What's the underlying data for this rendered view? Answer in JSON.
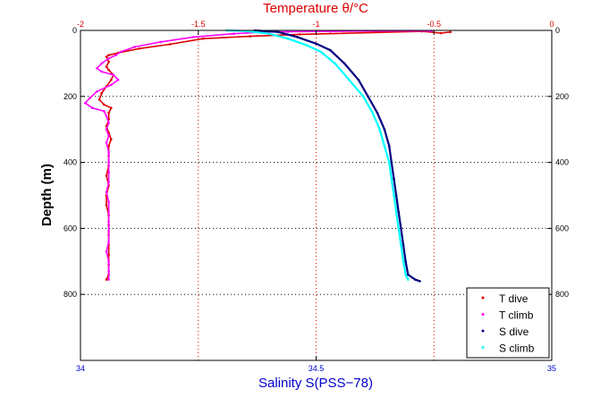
{
  "chart_data": {
    "type": "scatter",
    "title": "Temperature θ/°C",
    "xlabel": "Salinity S(PSS−78)",
    "ylabel": "Depth (m)",
    "x_bottom": {
      "label": "Salinity S(PSS−78)",
      "lim": [
        34,
        35
      ],
      "ticks": [
        "34",
        "34.5",
        "35"
      ],
      "tick_values": [
        34,
        34.5,
        35
      ],
      "color": "#0000cc"
    },
    "x_top": {
      "label": "Temperature θ/°C",
      "lim": [
        -2,
        0
      ],
      "ticks": [
        "-2",
        "-1.5",
        "-1",
        "-0.5",
        "0"
      ],
      "tick_values": [
        -2,
        -1.5,
        -1,
        -0.5,
        0
      ],
      "color": "#dd0000"
    },
    "y": {
      "label": "Depth (m)",
      "lim": [
        0,
        1000
      ],
      "reversed": true,
      "ticks": [
        "0",
        "200",
        "400",
        "600",
        "800"
      ],
      "tick_values": [
        0,
        200,
        400,
        600,
        800
      ]
    },
    "grid": {
      "horizontal": "dotted-black",
      "vertical_temperature": "dotted-red"
    },
    "legend_position": "bottom-right",
    "series": [
      {
        "name": "T dive",
        "axis": "temperature",
        "color": "#dd0000",
        "points": [
          [
            -0.43,
            5
          ],
          [
            -0.47,
            8
          ],
          [
            -0.55,
            3
          ],
          [
            -1.07,
            12
          ],
          [
            -1.28,
            18
          ],
          [
            -1.48,
            25
          ],
          [
            -1.62,
            42
          ],
          [
            -1.75,
            55
          ],
          [
            -1.84,
            68
          ],
          [
            -1.88,
            75
          ],
          [
            -1.89,
            80
          ],
          [
            -1.88,
            95
          ],
          [
            -1.89,
            110
          ],
          [
            -1.88,
            120
          ],
          [
            -1.86,
            135
          ],
          [
            -1.87,
            150
          ],
          [
            -1.89,
            170
          ],
          [
            -1.91,
            190
          ],
          [
            -1.92,
            210
          ],
          [
            -1.9,
            225
          ],
          [
            -1.87,
            235
          ],
          [
            -1.88,
            250
          ],
          [
            -1.88,
            270
          ],
          [
            -1.89,
            290
          ],
          [
            -1.88,
            310
          ],
          [
            -1.87,
            330
          ],
          [
            -1.88,
            350
          ],
          [
            -1.88,
            380
          ],
          [
            -1.88,
            410
          ],
          [
            -1.89,
            440
          ],
          [
            -1.88,
            470
          ],
          [
            -1.89,
            500
          ],
          [
            -1.89,
            530
          ],
          [
            -1.88,
            560
          ],
          [
            -1.88,
            590
          ],
          [
            -1.88,
            620
          ],
          [
            -1.88,
            650
          ],
          [
            -1.88,
            680
          ],
          [
            -1.88,
            710
          ],
          [
            -1.88,
            740
          ],
          [
            -1.89,
            755
          ]
        ]
      },
      {
        "name": "T climb",
        "axis": "temperature",
        "color": "#ff00ff",
        "points": [
          [
            -0.51,
            2
          ],
          [
            -0.6,
            1
          ],
          [
            -0.94,
            3
          ],
          [
            -1.12,
            4
          ],
          [
            -1.22,
            5
          ],
          [
            -1.35,
            10
          ],
          [
            -1.52,
            20
          ],
          [
            -1.66,
            35
          ],
          [
            -1.77,
            50
          ],
          [
            -1.83,
            65
          ],
          [
            -1.85,
            75
          ],
          [
            -1.88,
            85
          ],
          [
            -1.91,
            100
          ],
          [
            -1.93,
            115
          ],
          [
            -1.91,
            125
          ],
          [
            -1.86,
            135
          ],
          [
            -1.84,
            150
          ],
          [
            -1.87,
            165
          ],
          [
            -1.93,
            185
          ],
          [
            -1.96,
            205
          ],
          [
            -1.98,
            220
          ],
          [
            -1.95,
            235
          ],
          [
            -1.9,
            245
          ],
          [
            -1.89,
            260
          ],
          [
            -1.88,
            280
          ],
          [
            -1.89,
            300
          ],
          [
            -1.88,
            320
          ],
          [
            -1.89,
            340
          ],
          [
            -1.88,
            370
          ],
          [
            -1.88,
            400
          ],
          [
            -1.88,
            430
          ],
          [
            -1.88,
            460
          ],
          [
            -1.89,
            490
          ],
          [
            -1.88,
            520
          ],
          [
            -1.88,
            550
          ],
          [
            -1.88,
            580
          ],
          [
            -1.88,
            610
          ],
          [
            -1.88,
            640
          ],
          [
            -1.89,
            670
          ],
          [
            -1.88,
            700
          ],
          [
            -1.88,
            730
          ],
          [
            -1.88,
            755
          ]
        ]
      },
      {
        "name": "S dive",
        "axis": "salinity",
        "color": "#000080",
        "points": [
          [
            34.37,
            0
          ],
          [
            34.42,
            5
          ],
          [
            34.46,
            20
          ],
          [
            34.5,
            40
          ],
          [
            34.53,
            60
          ],
          [
            34.56,
            100
          ],
          [
            34.59,
            150
          ],
          [
            34.61,
            200
          ],
          [
            34.63,
            250
          ],
          [
            34.645,
            300
          ],
          [
            34.655,
            350
          ],
          [
            34.66,
            400
          ],
          [
            34.665,
            450
          ],
          [
            34.67,
            500
          ],
          [
            34.675,
            550
          ],
          [
            34.68,
            600
          ],
          [
            34.685,
            650
          ],
          [
            34.69,
            700
          ],
          [
            34.695,
            740
          ],
          [
            34.71,
            755
          ],
          [
            34.72,
            760
          ]
        ]
      },
      {
        "name": "S climb",
        "axis": "salinity",
        "color": "#00ffff",
        "points": [
          [
            34.31,
            0
          ],
          [
            34.35,
            2
          ],
          [
            34.4,
            10
          ],
          [
            34.44,
            25
          ],
          [
            34.48,
            45
          ],
          [
            34.51,
            65
          ],
          [
            34.54,
            100
          ],
          [
            34.57,
            150
          ],
          [
            34.6,
            200
          ],
          [
            34.62,
            250
          ],
          [
            34.635,
            300
          ],
          [
            34.645,
            350
          ],
          [
            34.655,
            400
          ],
          [
            34.66,
            450
          ],
          [
            34.665,
            500
          ],
          [
            34.67,
            550
          ],
          [
            34.675,
            600
          ],
          [
            34.68,
            650
          ],
          [
            34.685,
            700
          ],
          [
            34.69,
            740
          ],
          [
            34.695,
            755
          ]
        ]
      }
    ]
  }
}
